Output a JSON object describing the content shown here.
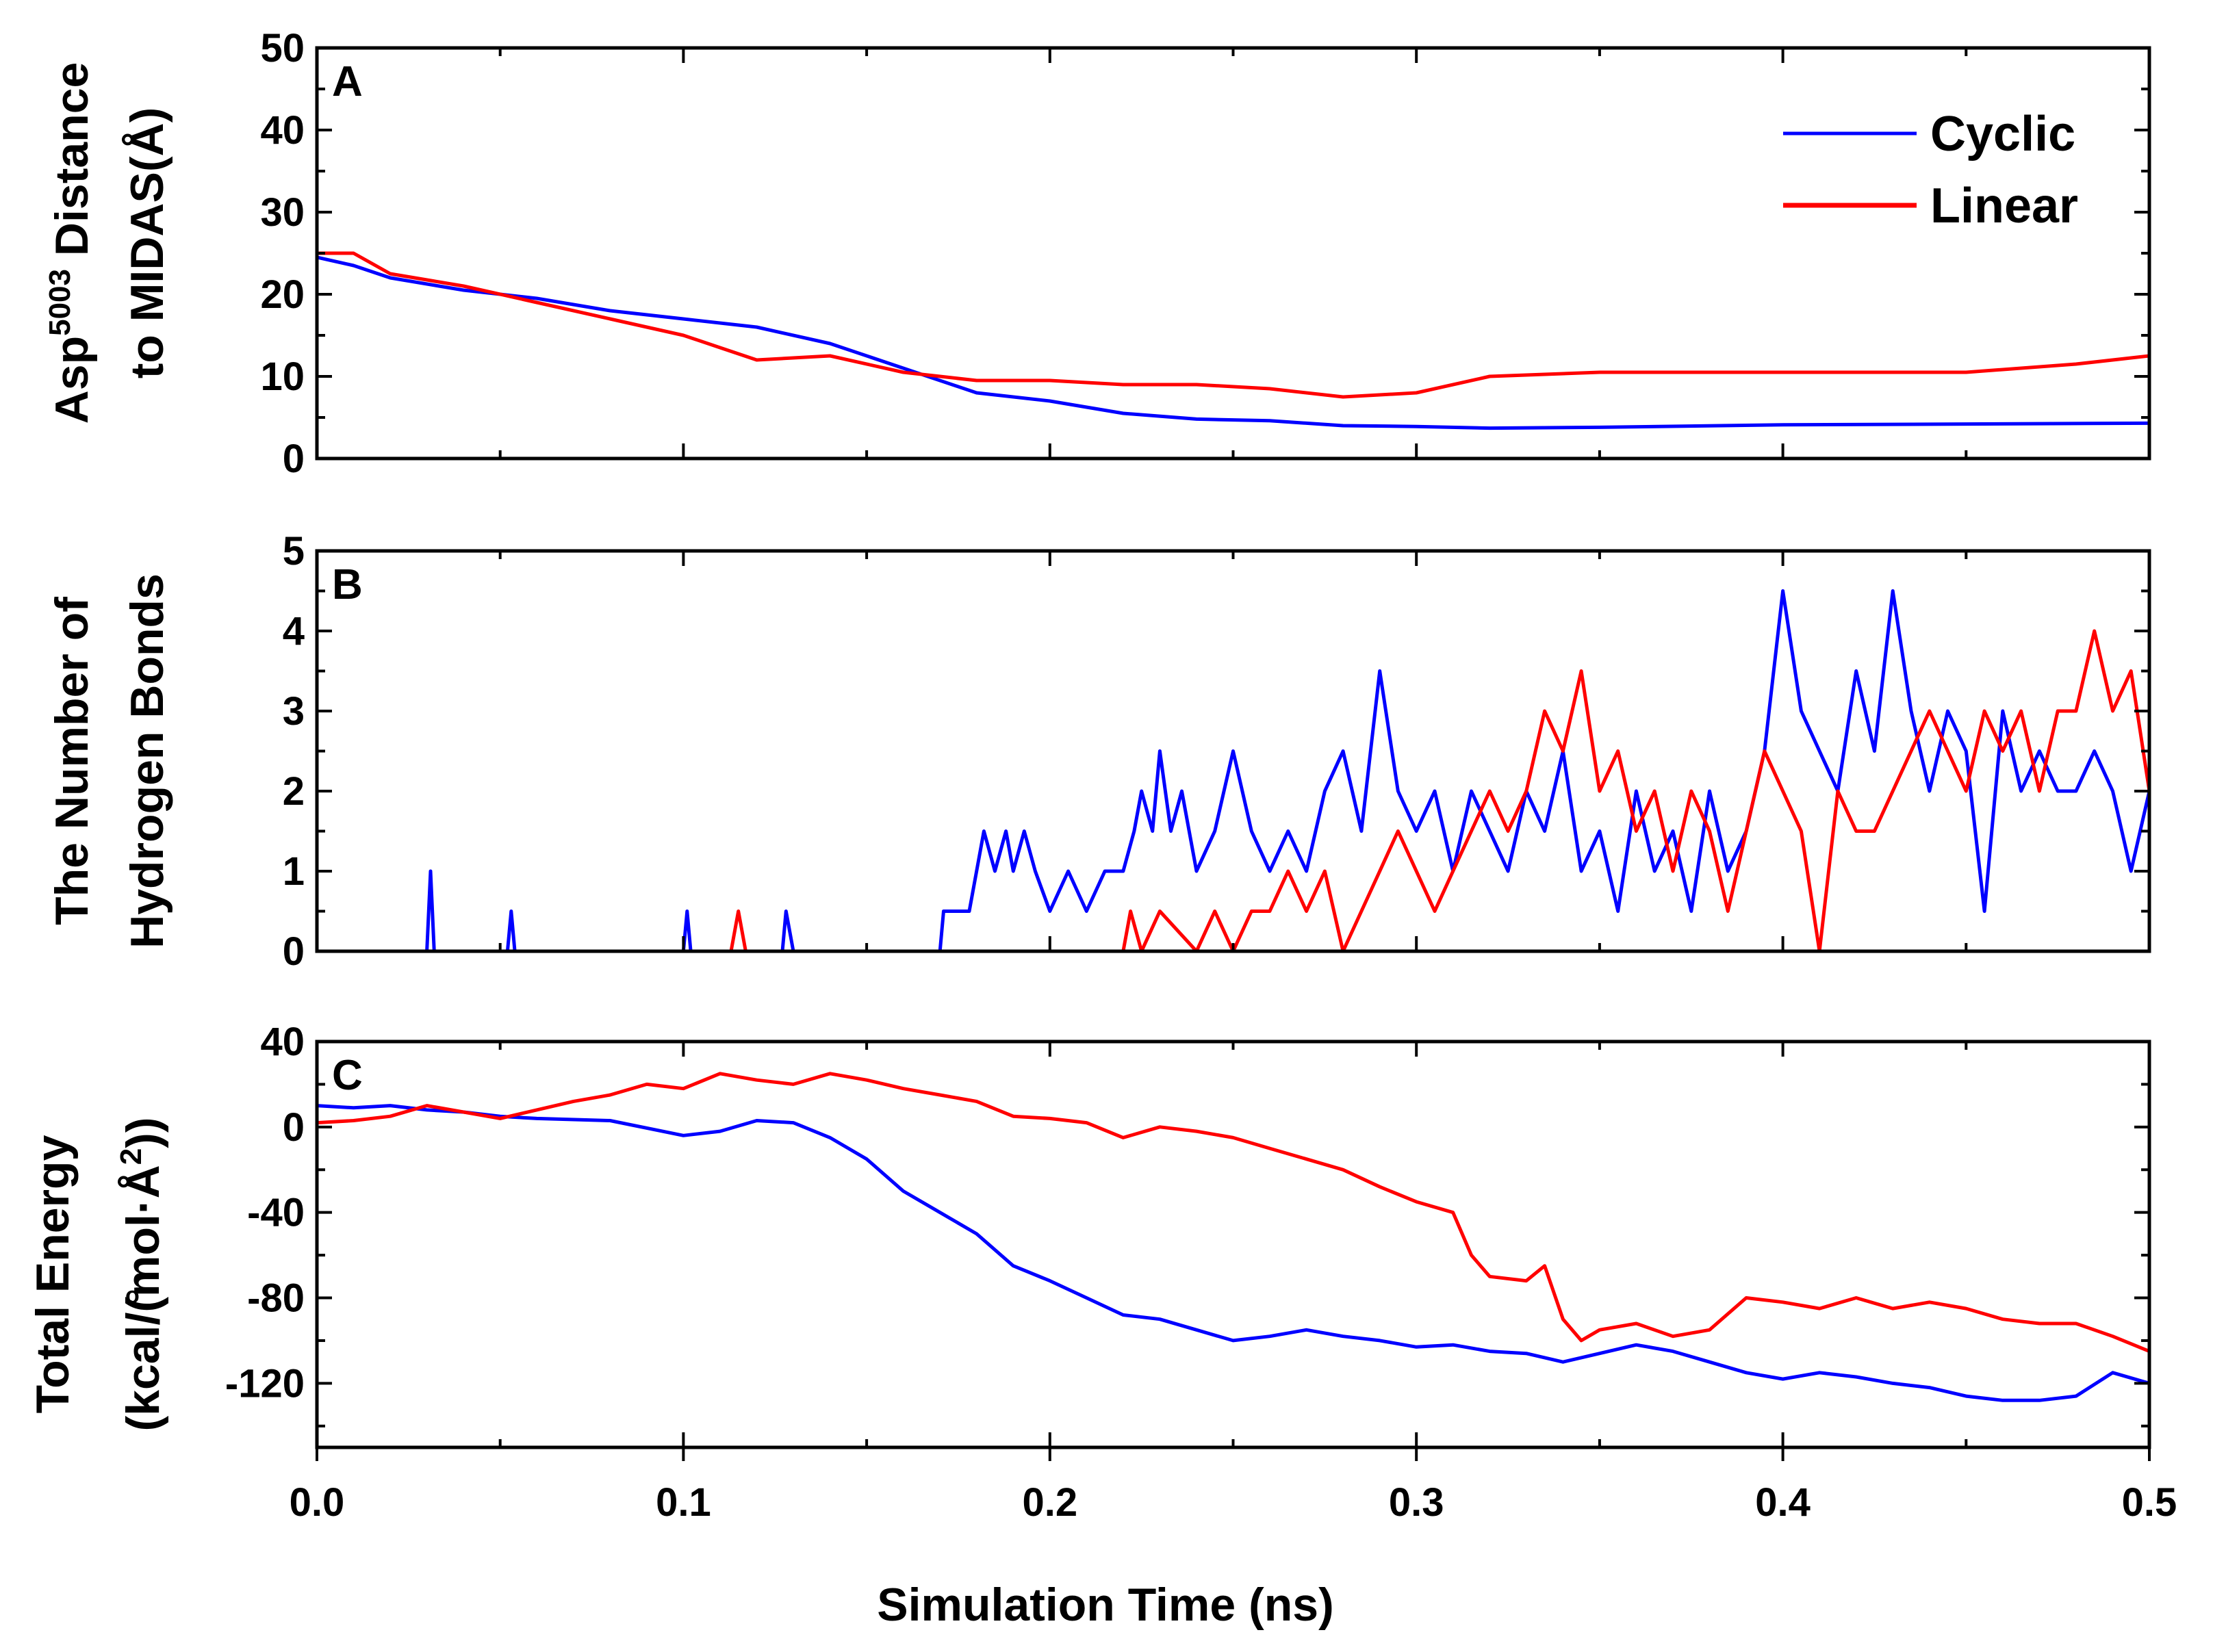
{
  "chart_data": [
    {
      "panel": "A",
      "type": "line",
      "ylabel_line1_main": "Asp",
      "ylabel_line1_sup": "5003",
      "ylabel_line1_rest": " Distance",
      "ylabel_line2": "to MIDAS(Å)",
      "ylim": [
        0,
        50
      ],
      "yticks": [
        0,
        10,
        20,
        30,
        40,
        50
      ],
      "ytick_labels": [
        "0",
        "10",
        "20",
        "30",
        "40",
        "50"
      ],
      "legend": {
        "position": "top-right",
        "entries": [
          "Cyclic",
          "Linear"
        ]
      },
      "series": [
        {
          "name": "Cyclic",
          "color": "#0000ff",
          "x": [
            0,
            0.01,
            0.02,
            0.04,
            0.06,
            0.08,
            0.1,
            0.12,
            0.14,
            0.16,
            0.18,
            0.2,
            0.22,
            0.24,
            0.26,
            0.28,
            0.3,
            0.32,
            0.35,
            0.4,
            0.45,
            0.5
          ],
          "y": [
            24.5,
            23.5,
            22,
            20.5,
            19.5,
            18,
            17,
            16,
            14,
            11,
            8,
            7,
            5.5,
            4.8,
            4.6,
            4,
            3.9,
            3.7,
            3.8,
            4.1,
            4.2,
            4.3
          ]
        },
        {
          "name": "Linear",
          "color": "#ff0000",
          "x": [
            0,
            0.01,
            0.02,
            0.04,
            0.06,
            0.08,
            0.1,
            0.12,
            0.14,
            0.16,
            0.18,
            0.2,
            0.22,
            0.24,
            0.26,
            0.28,
            0.3,
            0.32,
            0.35,
            0.4,
            0.45,
            0.48,
            0.5
          ],
          "y": [
            25,
            25,
            22.5,
            21,
            19,
            17,
            15,
            12,
            12.5,
            10.5,
            9.5,
            9.5,
            9,
            9,
            8.5,
            7.5,
            8,
            10,
            10.5,
            10.5,
            10.5,
            11.5,
            12.5
          ]
        }
      ]
    },
    {
      "panel": "B",
      "type": "line",
      "ylabel_line1": "The Number of",
      "ylabel_line2": "Hydrogen Bonds",
      "ylim": [
        0,
        5
      ],
      "yticks": [
        0,
        1,
        2,
        3,
        4,
        5
      ],
      "ytick_labels": [
        "0",
        "1",
        "2",
        "3",
        "4",
        "5"
      ],
      "series": [
        {
          "name": "Cyclic",
          "color": "#0000ff",
          "x": [
            0,
            0.03,
            0.031,
            0.032,
            0.033,
            0.052,
            0.053,
            0.054,
            0.1,
            0.101,
            0.102,
            0.127,
            0.128,
            0.13,
            0.17,
            0.171,
            0.178,
            0.18,
            0.182,
            0.185,
            0.188,
            0.19,
            0.193,
            0.196,
            0.2,
            0.205,
            0.21,
            0.215,
            0.22,
            0.223,
            0.225,
            0.228,
            0.23,
            0.233,
            0.236,
            0.24,
            0.245,
            0.25,
            0.255,
            0.26,
            0.265,
            0.27,
            0.275,
            0.28,
            0.285,
            0.29,
            0.295,
            0.3,
            0.305,
            0.31,
            0.315,
            0.32,
            0.325,
            0.33,
            0.335,
            0.34,
            0.345,
            0.35,
            0.355,
            0.36,
            0.365,
            0.37,
            0.375,
            0.38,
            0.385,
            0.39,
            0.395,
            0.4,
            0.405,
            0.41,
            0.415,
            0.42,
            0.425,
            0.43,
            0.435,
            0.44,
            0.445,
            0.45,
            0.455,
            0.46,
            0.465,
            0.47,
            0.475,
            0.48,
            0.485,
            0.49,
            0.495,
            0.5
          ],
          "y": [
            0,
            0,
            1,
            0,
            0,
            0,
            0.5,
            0,
            0,
            0.5,
            0,
            0,
            0.5,
            0,
            0,
            0.5,
            0.5,
            1,
            1.5,
            1,
            1.5,
            1,
            1.5,
            1,
            0.5,
            1,
            0.5,
            1,
            1,
            1.5,
            2,
            1.5,
            2.5,
            1.5,
            2,
            1,
            1.5,
            2.5,
            1.5,
            1,
            1.5,
            1,
            2,
            2.5,
            1.5,
            3.5,
            2,
            1.5,
            2,
            1,
            2,
            1.5,
            1,
            2,
            1.5,
            2.5,
            1,
            1.5,
            0.5,
            2,
            1,
            1.5,
            0.5,
            2,
            1,
            1.5,
            2.5,
            4.5,
            3,
            2.5,
            2,
            3.5,
            2.5,
            4.5,
            3,
            2,
            3,
            2.5,
            0.5,
            3,
            2,
            2.5,
            2,
            2,
            2.5,
            2,
            1,
            2
          ]
        },
        {
          "name": "Linear",
          "color": "#ff0000",
          "x": [
            0,
            0.113,
            0.115,
            0.117,
            0.22,
            0.222,
            0.225,
            0.23,
            0.24,
            0.245,
            0.25,
            0.255,
            0.26,
            0.265,
            0.27,
            0.275,
            0.28,
            0.285,
            0.29,
            0.295,
            0.3,
            0.305,
            0.31,
            0.315,
            0.32,
            0.325,
            0.33,
            0.335,
            0.34,
            0.345,
            0.35,
            0.355,
            0.36,
            0.365,
            0.37,
            0.375,
            0.38,
            0.385,
            0.39,
            0.395,
            0.4,
            0.405,
            0.41,
            0.415,
            0.42,
            0.425,
            0.43,
            0.435,
            0.44,
            0.445,
            0.45,
            0.455,
            0.46,
            0.465,
            0.47,
            0.475,
            0.48,
            0.485,
            0.49,
            0.495,
            0.5
          ],
          "y": [
            0,
            0,
            0.5,
            0,
            0,
            0.5,
            0,
            0.5,
            0,
            0.5,
            0,
            0.5,
            0.5,
            1,
            0.5,
            1,
            0,
            0.5,
            1,
            1.5,
            1,
            0.5,
            1,
            1.5,
            2,
            1.5,
            2,
            3,
            2.5,
            3.5,
            2,
            2.5,
            1.5,
            2,
            1,
            2,
            1.5,
            0.5,
            1.5,
            2.5,
            2,
            1.5,
            0,
            2,
            1.5,
            1.5,
            2,
            2.5,
            3,
            2.5,
            2,
            3,
            2.5,
            3,
            2,
            3,
            3,
            4,
            3,
            3.5,
            2
          ]
        }
      ]
    },
    {
      "panel": "C",
      "type": "line",
      "ylabel_line1": "Total Energy",
      "ylabel_line2_pre": "(kcal/(mol·",
      "ylabel_line2_unit": "Å",
      "ylabel_line2_sup": "2",
      "ylabel_line2_post": "))",
      "ylabel_ring": "o",
      "ylim": [
        -150,
        40
      ],
      "yticks": [
        -120,
        -80,
        -40,
        0,
        40
      ],
      "ytick_labels": [
        "-120",
        "-80",
        "-40",
        "0",
        "40"
      ],
      "series": [
        {
          "name": "Cyclic",
          "color": "#0000ff",
          "x": [
            0,
            0.01,
            0.02,
            0.03,
            0.04,
            0.05,
            0.06,
            0.08,
            0.1,
            0.11,
            0.12,
            0.13,
            0.14,
            0.15,
            0.16,
            0.17,
            0.18,
            0.19,
            0.2,
            0.21,
            0.22,
            0.23,
            0.24,
            0.25,
            0.26,
            0.27,
            0.28,
            0.29,
            0.3,
            0.31,
            0.32,
            0.33,
            0.34,
            0.35,
            0.36,
            0.37,
            0.38,
            0.39,
            0.4,
            0.41,
            0.42,
            0.43,
            0.44,
            0.45,
            0.46,
            0.47,
            0.48,
            0.49,
            0.5
          ],
          "y": [
            10,
            9,
            10,
            8,
            7,
            5,
            4,
            3,
            -4,
            -2,
            3,
            2,
            -5,
            -15,
            -30,
            -40,
            -50,
            -65,
            -72,
            -80,
            -88,
            -90,
            -95,
            -100,
            -98,
            -95,
            -98,
            -100,
            -103,
            -102,
            -105,
            -106,
            -110,
            -106,
            -102,
            -105,
            -110,
            -115,
            -118,
            -115,
            -117,
            -120,
            -122,
            -126,
            -128,
            -128,
            -126,
            -115,
            -120
          ]
        },
        {
          "name": "Linear",
          "color": "#ff0000",
          "x": [
            0,
            0.01,
            0.02,
            0.03,
            0.04,
            0.05,
            0.06,
            0.07,
            0.08,
            0.09,
            0.1,
            0.11,
            0.12,
            0.13,
            0.14,
            0.15,
            0.16,
            0.17,
            0.18,
            0.19,
            0.2,
            0.21,
            0.22,
            0.23,
            0.24,
            0.25,
            0.26,
            0.27,
            0.28,
            0.29,
            0.3,
            0.31,
            0.315,
            0.32,
            0.33,
            0.335,
            0.34,
            0.345,
            0.35,
            0.36,
            0.37,
            0.38,
            0.39,
            0.4,
            0.41,
            0.42,
            0.43,
            0.44,
            0.45,
            0.46,
            0.47,
            0.48,
            0.49,
            0.5
          ],
          "y": [
            2,
            3,
            5,
            10,
            7,
            4,
            8,
            12,
            15,
            20,
            18,
            25,
            22,
            20,
            25,
            22,
            18,
            15,
            12,
            5,
            4,
            2,
            -5,
            0,
            -2,
            -5,
            -10,
            -15,
            -20,
            -28,
            -35,
            -40,
            -60,
            -70,
            -72,
            -65,
            -90,
            -100,
            -95,
            -92,
            -98,
            -95,
            -80,
            -82,
            -85,
            -80,
            -85,
            -82,
            -85,
            -90,
            -92,
            -92,
            -98,
            -105
          ]
        }
      ]
    }
  ],
  "x_axis": {
    "xlim": [
      0,
      0.5
    ],
    "ticks": [
      0,
      0.1,
      0.2,
      0.3,
      0.4,
      0.5
    ],
    "tick_labels": [
      "0.0",
      "0.1",
      "0.2",
      "0.3",
      "0.4",
      "0.5"
    ],
    "label": "Simulation Time (ns)"
  }
}
